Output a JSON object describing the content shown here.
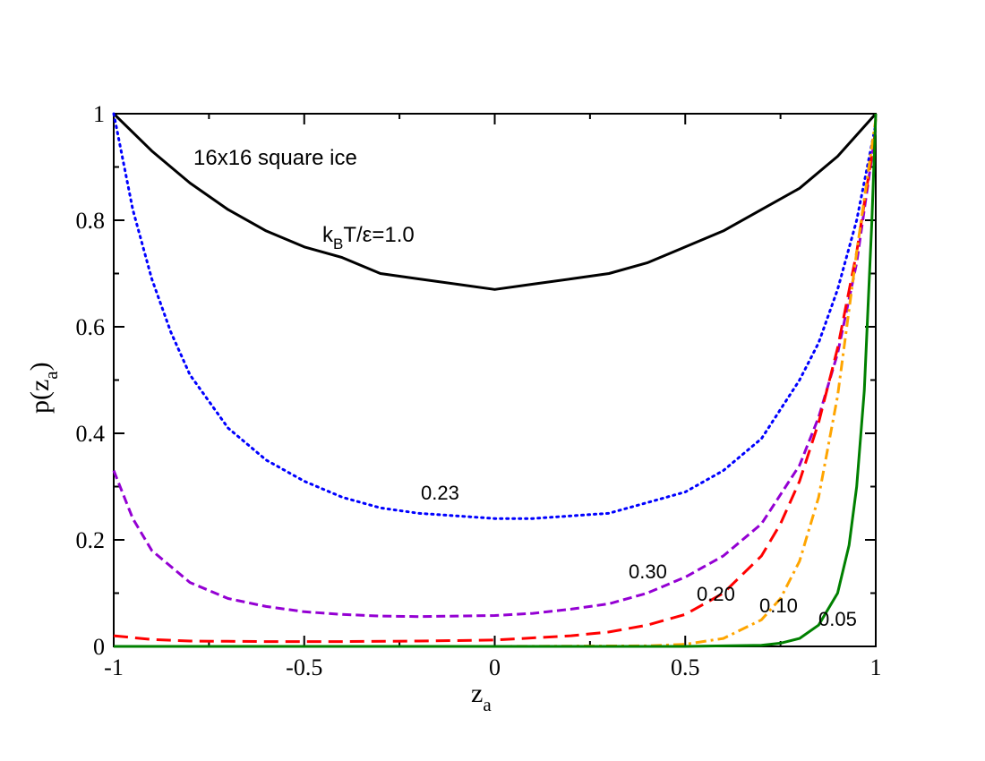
{
  "chart_data": {
    "type": "line",
    "xlabel_main": "z",
    "xlabel_sub": "a",
    "ylabel_main": "p(z",
    "ylabel_sub": "a",
    "ylabel_close": ")",
    "xlim": [
      -1,
      1
    ],
    "ylim": [
      0,
      1
    ],
    "x_ticks": [
      -1,
      -0.5,
      0,
      0.5,
      1
    ],
    "x_tick_labels": [
      "-1",
      "-0.5",
      "0",
      "0.5",
      "1"
    ],
    "y_ticks": [
      0,
      0.2,
      0.4,
      0.6,
      0.8,
      1
    ],
    "y_tick_labels": [
      "0",
      "0.2",
      "0.4",
      "0.6",
      "0.8",
      "1"
    ],
    "annotation_title": "16x16 square ice",
    "temp_label": {
      "pre": "k",
      "sub": "B",
      "post": "T/ε=1.0"
    },
    "series": [
      {
        "name": "1.0",
        "color": "#000000",
        "style": "solid",
        "x": [
          -1,
          -0.9,
          -0.8,
          -0.7,
          -0.6,
          -0.5,
          -0.4,
          -0.3,
          -0.2,
          -0.1,
          0,
          0.1,
          0.2,
          0.3,
          0.4,
          0.5,
          0.6,
          0.7,
          0.8,
          0.9,
          1
        ],
        "y": [
          1.0,
          0.93,
          0.87,
          0.82,
          0.78,
          0.75,
          0.73,
          0.7,
          0.69,
          0.68,
          0.67,
          0.68,
          0.69,
          0.7,
          0.72,
          0.75,
          0.78,
          0.82,
          0.86,
          0.92,
          1.0
        ]
      },
      {
        "name": "0.23",
        "color": "#0000ff",
        "style": "dotted",
        "x": [
          -1,
          -0.95,
          -0.9,
          -0.85,
          -0.8,
          -0.7,
          -0.6,
          -0.5,
          -0.4,
          -0.3,
          -0.2,
          -0.1,
          0,
          0.1,
          0.2,
          0.3,
          0.4,
          0.5,
          0.6,
          0.7,
          0.8,
          0.85,
          0.9,
          0.95,
          1
        ],
        "y": [
          1.0,
          0.82,
          0.69,
          0.59,
          0.51,
          0.41,
          0.35,
          0.31,
          0.28,
          0.26,
          0.25,
          0.245,
          0.24,
          0.24,
          0.245,
          0.25,
          0.27,
          0.29,
          0.33,
          0.39,
          0.5,
          0.57,
          0.67,
          0.8,
          0.98
        ]
      },
      {
        "name": "0.30",
        "color": "#9400d3",
        "style": "dashed",
        "x": [
          -1,
          -0.95,
          -0.9,
          -0.8,
          -0.7,
          -0.6,
          -0.5,
          -0.4,
          -0.3,
          -0.2,
          -0.1,
          0,
          0.1,
          0.2,
          0.3,
          0.4,
          0.5,
          0.6,
          0.7,
          0.8,
          0.85,
          0.9,
          0.95,
          1
        ],
        "y": [
          0.33,
          0.24,
          0.18,
          0.12,
          0.09,
          0.075,
          0.065,
          0.06,
          0.057,
          0.056,
          0.057,
          0.058,
          0.062,
          0.07,
          0.08,
          0.1,
          0.13,
          0.17,
          0.23,
          0.34,
          0.43,
          0.55,
          0.72,
          0.97
        ]
      },
      {
        "name": "0.20",
        "color": "#ff0000",
        "style": "longdash",
        "x": [
          -1,
          -0.9,
          -0.8,
          -0.6,
          -0.4,
          -0.2,
          0,
          0.2,
          0.3,
          0.4,
          0.5,
          0.6,
          0.7,
          0.75,
          0.8,
          0.85,
          0.9,
          0.95,
          1
        ],
        "y": [
          0.02,
          0.013,
          0.01,
          0.009,
          0.009,
          0.01,
          0.012,
          0.02,
          0.027,
          0.04,
          0.06,
          0.1,
          0.17,
          0.23,
          0.31,
          0.42,
          0.56,
          0.74,
          0.97
        ]
      },
      {
        "name": "0.10",
        "color": "#ffa500",
        "style": "dashdot",
        "x": [
          -1,
          0,
          0.4,
          0.5,
          0.6,
          0.7,
          0.75,
          0.8,
          0.85,
          0.9,
          0.95,
          1
        ],
        "y": [
          0,
          0,
          0.001,
          0.004,
          0.015,
          0.05,
          0.09,
          0.16,
          0.28,
          0.47,
          0.74,
          0.99
        ]
      },
      {
        "name": "0.05",
        "color": "#008000",
        "style": "solid",
        "x": [
          -1,
          0.5,
          0.7,
          0.75,
          0.8,
          0.85,
          0.9,
          0.93,
          0.95,
          0.97,
          0.99,
          1
        ],
        "y": [
          0,
          0,
          0.002,
          0.006,
          0.015,
          0.04,
          0.1,
          0.19,
          0.3,
          0.48,
          0.8,
          1.0
        ]
      }
    ],
    "curve_labels": [
      "0.23",
      "0.30",
      "0.20",
      "0.10",
      "0.05"
    ]
  }
}
